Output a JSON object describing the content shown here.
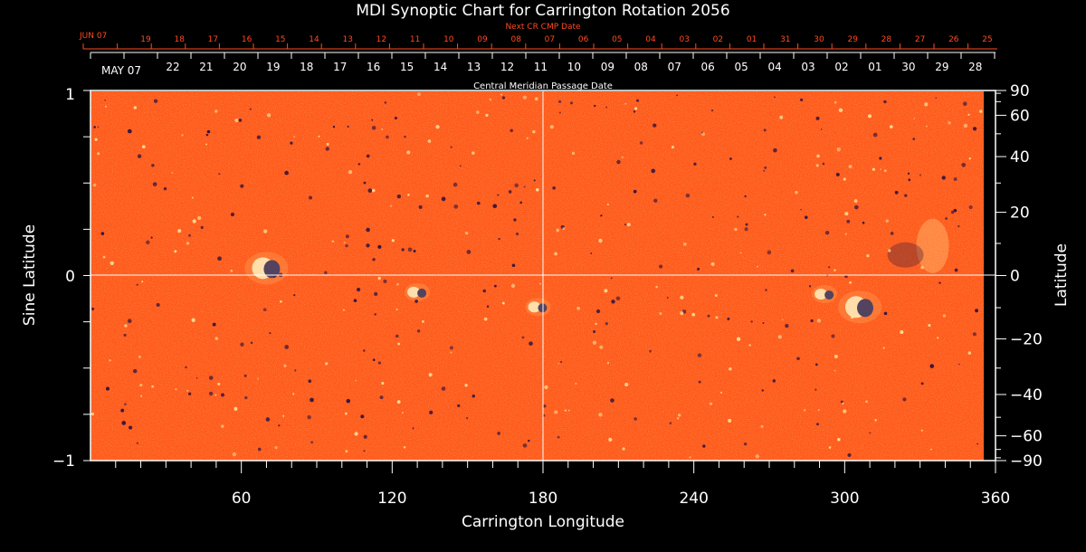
{
  "title": "MDI Synoptic Chart for Carrington Rotation 2056",
  "top_axis_label": "Next CR CMP Date",
  "top_axis_first_label": "JUN 07",
  "top_axis_dates": [
    "19",
    "18",
    "17",
    "16",
    "15",
    "14",
    "13",
    "12",
    "11",
    "10",
    "09",
    "08",
    "07",
    "06",
    "05",
    "04",
    "03",
    "02",
    "01",
    "31",
    "30",
    "29",
    "28",
    "27",
    "26",
    "25"
  ],
  "mid_axis_first_label": "MAY 07",
  "mid_axis_dates": [
    "22",
    "21",
    "20",
    "19",
    "18",
    "17",
    "16",
    "15",
    "14",
    "13",
    "12",
    "11",
    "10",
    "09",
    "08",
    "07",
    "06",
    "05",
    "04",
    "03",
    "02",
    "01",
    "30",
    "29",
    "28"
  ],
  "mid_axis_label": "Central Meridian Passage Date",
  "left_axis_label": "Sine Latitude",
  "left_ticks": [
    "1",
    "0",
    "−1"
  ],
  "right_axis_label": "Latitude",
  "right_ticks": [
    "90",
    "60",
    "40",
    "20",
    "0",
    "−20",
    "−40",
    "−60",
    "−90"
  ],
  "bottom_axis_label": "Carrington Longitude",
  "bottom_ticks": [
    "60",
    "120",
    "180",
    "240",
    "300",
    "360"
  ],
  "colors": {
    "background": "#000000",
    "map_base": "#ff5a1c",
    "axis_text": "#ffffff",
    "next_cr_text": "#ff4a1f",
    "positive_polarity": "#ffffff",
    "negative_polarity": "#1a1a5a"
  },
  "regions": [
    {
      "label": "active region",
      "lon": 70,
      "sinlat": 0.04
    },
    {
      "label": "active region",
      "lon": 130,
      "sinlat": -0.09
    },
    {
      "label": "active region",
      "lon": 178,
      "sinlat": -0.17
    },
    {
      "label": "active region",
      "lon": 292,
      "sinlat": -0.1
    },
    {
      "label": "active region",
      "lon": 306,
      "sinlat": -0.17
    },
    {
      "label": "plage",
      "lon": 335,
      "sinlat": 0.16
    }
  ]
}
